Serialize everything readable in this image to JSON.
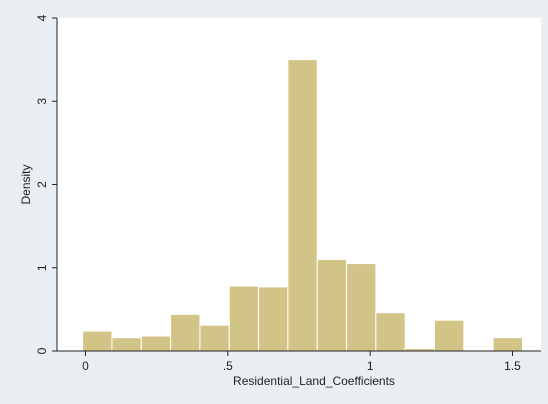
{
  "chart_data": {
    "type": "bar",
    "subtype": "histogram",
    "xlabel": "Residential_Land_Coefficients",
    "ylabel": "Density",
    "xlim": [
      -0.1,
      1.6
    ],
    "ylim": [
      0,
      4
    ],
    "x_ticks": [
      {
        "value": 0,
        "label": "0"
      },
      {
        "value": 0.5,
        "label": ".5"
      },
      {
        "value": 1,
        "label": "1"
      },
      {
        "value": 1.5,
        "label": "1.5"
      }
    ],
    "y_ticks": [
      {
        "value": 0,
        "label": "0"
      },
      {
        "value": 1,
        "label": "1"
      },
      {
        "value": 2,
        "label": "2"
      },
      {
        "value": 3,
        "label": "3"
      },
      {
        "value": 4,
        "label": "4"
      }
    ],
    "bins": [
      {
        "x0": -0.01,
        "x1": 0.093,
        "density": 0.24
      },
      {
        "x0": 0.093,
        "x1": 0.196,
        "density": 0.16
      },
      {
        "x0": 0.196,
        "x1": 0.299,
        "density": 0.18
      },
      {
        "x0": 0.299,
        "x1": 0.402,
        "density": 0.44
      },
      {
        "x0": 0.402,
        "x1": 0.505,
        "density": 0.31
      },
      {
        "x0": 0.505,
        "x1": 0.608,
        "density": 0.78
      },
      {
        "x0": 0.608,
        "x1": 0.711,
        "density": 0.77
      },
      {
        "x0": 0.711,
        "x1": 0.814,
        "density": 3.5
      },
      {
        "x0": 0.814,
        "x1": 0.917,
        "density": 1.1
      },
      {
        "x0": 0.917,
        "x1": 1.02,
        "density": 1.05
      },
      {
        "x0": 1.02,
        "x1": 1.123,
        "density": 0.46
      },
      {
        "x0": 1.123,
        "x1": 1.226,
        "density": 0.03
      },
      {
        "x0": 1.226,
        "x1": 1.329,
        "density": 0.37
      },
      {
        "x0": 1.329,
        "x1": 1.432,
        "density": 0.0
      },
      {
        "x0": 1.432,
        "x1": 1.535,
        "density": 0.16
      }
    ],
    "colors": {
      "background": "#e9eef3",
      "plot_area": "#ffffff",
      "bar_fill": "#d2c387",
      "bar_stroke": "#ffffff",
      "axis": "#222222"
    },
    "grid": false,
    "legend": "none"
  }
}
